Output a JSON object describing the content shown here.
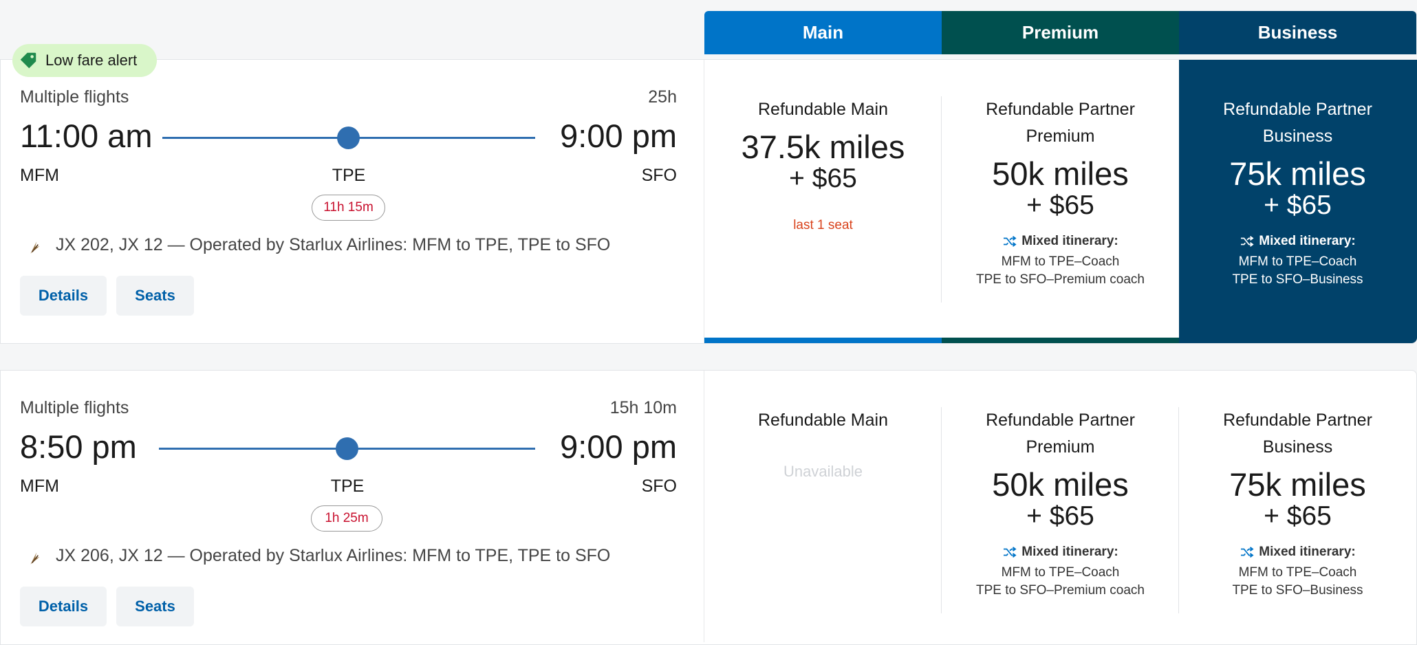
{
  "cabins": {
    "main": {
      "label": "Main",
      "color": "#0074c8"
    },
    "premium": {
      "label": "Premium",
      "color": "#00504f"
    },
    "business": {
      "label": "Business",
      "color": "#01426a"
    }
  },
  "alert": {
    "label": "Low fare alert",
    "icon": "tag-icon"
  },
  "flights": [
    {
      "type": "Multiple flights",
      "duration": "25h",
      "depart_time": "11:00 am",
      "arrive_time": "9:00 pm",
      "origin": "MFM",
      "stop": "TPE",
      "destination": "SFO",
      "layover": "11h 15m",
      "description": "JX 202, JX 12 — Operated by Starlux Airlines: MFM to TPE, TPE to SFO",
      "details_label": "Details",
      "seats_label": "Seats",
      "fares": {
        "main": {
          "name": "Refundable Main",
          "miles": "37.5k miles",
          "fee": "+ $65",
          "note": "last 1 seat"
        },
        "premium": {
          "name_line1": "Refundable Partner",
          "name_line2": "Premium",
          "miles": "50k miles",
          "fee": "+ $65",
          "mixed_title": "Mixed itinerary:",
          "mixed_line1": "MFM to TPE–Coach",
          "mixed_line2": "TPE to SFO–Premium coach"
        },
        "business": {
          "name_line1": "Refundable Partner",
          "name_line2": "Business",
          "miles": "75k miles",
          "fee": "+ $65",
          "mixed_title": "Mixed itinerary:",
          "mixed_line1": "MFM to TPE–Coach",
          "mixed_line2": "TPE to SFO–Business"
        }
      }
    },
    {
      "type": "Multiple flights",
      "duration": "15h 10m",
      "depart_time": "8:50 pm",
      "arrive_time": "9:00 pm",
      "origin": "MFM",
      "stop": "TPE",
      "destination": "SFO",
      "layover": "1h 25m",
      "description": "JX 206, JX 12 — Operated by Starlux Airlines: MFM to TPE, TPE to SFO",
      "details_label": "Details",
      "seats_label": "Seats",
      "fares": {
        "main": {
          "name": "Refundable Main",
          "status": "Unavailable"
        },
        "premium": {
          "name_line1": "Refundable Partner",
          "name_line2": "Premium",
          "miles": "50k miles",
          "fee": "+ $65",
          "mixed_title": "Mixed itinerary:",
          "mixed_line1": "MFM to TPE–Coach",
          "mixed_line2": "TPE to SFO–Premium coach"
        },
        "business": {
          "name_line1": "Refundable Partner",
          "name_line2": "Business",
          "miles": "75k miles",
          "fee": "+ $65",
          "mixed_title": "Mixed itinerary:",
          "mixed_line1": "MFM to TPE–Coach",
          "mixed_line2": "TPE to SFO–Business"
        }
      }
    }
  ]
}
